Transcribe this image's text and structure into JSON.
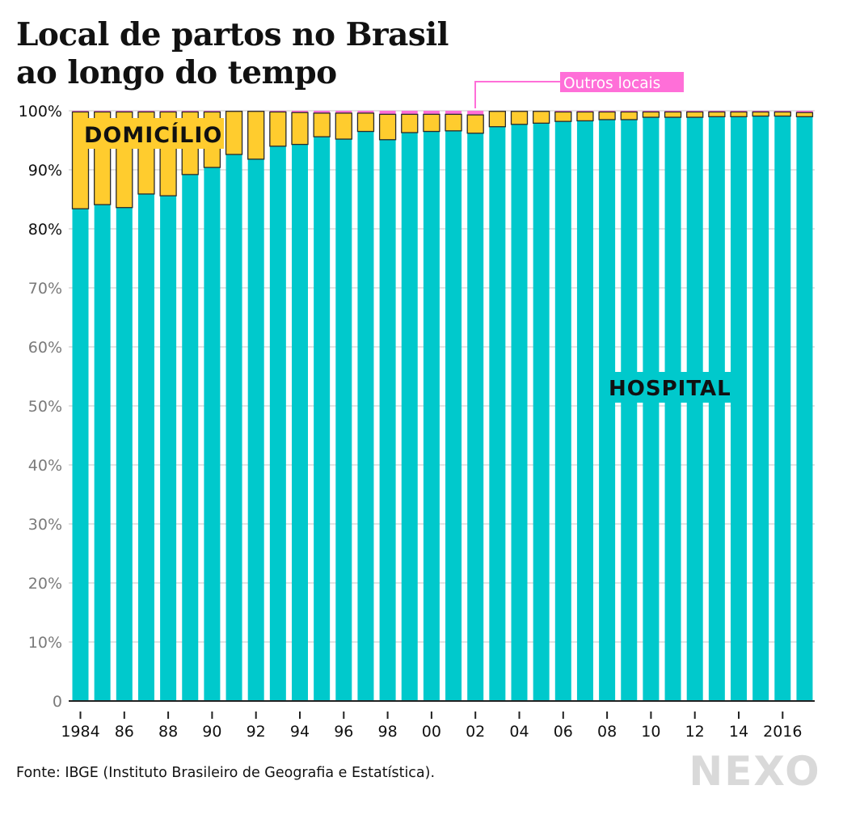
{
  "title_lines": [
    "Local de partos no Brasil",
    "ao longo do tempo"
  ],
  "source": "Fonte: IBGE (Instituto Brasileiro de Geografia e Estatística).",
  "logo_text": "NEXO",
  "colors": {
    "hospital": "#00c9cc",
    "domicilio": "#ffcc2e",
    "outros": "#ff6fd8",
    "outline": "#2a2a2a",
    "grid": "#d9d9d9",
    "logo": "#d9d9d9"
  },
  "chart_data": {
    "type": "bar",
    "stacked": true,
    "title": "Local de partos no Brasil ao longo do tempo",
    "xlabel": "",
    "ylabel": "",
    "ylim": [
      0,
      100
    ],
    "grid": true,
    "yticks": [
      0,
      10,
      20,
      30,
      40,
      50,
      60,
      70,
      80,
      90,
      100
    ],
    "ytick_labels": [
      "0",
      "10%",
      "20%",
      "30%",
      "40%",
      "50%",
      "60%",
      "70%",
      "80%",
      "90%",
      "100%"
    ],
    "ytick_emphasized": [
      80,
      90,
      100
    ],
    "categories": [
      1984,
      1985,
      1986,
      1987,
      1988,
      1989,
      1990,
      1991,
      1992,
      1993,
      1994,
      1995,
      1996,
      1997,
      1998,
      1999,
      2000,
      2001,
      2002,
      2003,
      2004,
      2005,
      2006,
      2007,
      2008,
      2009,
      2010,
      2011,
      2012,
      2013,
      2014,
      2015,
      2016,
      2017
    ],
    "xtick_labels": [
      {
        "year": 1984,
        "label": "1984"
      },
      {
        "year": 1986,
        "label": "86"
      },
      {
        "year": 1988,
        "label": "88"
      },
      {
        "year": 1990,
        "label": "90"
      },
      {
        "year": 1992,
        "label": "92"
      },
      {
        "year": 1994,
        "label": "94"
      },
      {
        "year": 1996,
        "label": "96"
      },
      {
        "year": 1998,
        "label": "98"
      },
      {
        "year": 2000,
        "label": "00"
      },
      {
        "year": 2002,
        "label": "02"
      },
      {
        "year": 2004,
        "label": "04"
      },
      {
        "year": 2006,
        "label": "06"
      },
      {
        "year": 2008,
        "label": "08"
      },
      {
        "year": 2010,
        "label": "10"
      },
      {
        "year": 2012,
        "label": "12"
      },
      {
        "year": 2014,
        "label": "14"
      },
      {
        "year": 2016,
        "label": "2016"
      }
    ],
    "series": [
      {
        "name": "Hospital",
        "label": "HOSPITAL",
        "values": [
          83.4,
          84.1,
          83.6,
          85.9,
          85.6,
          89.2,
          90.4,
          92.6,
          91.8,
          94.0,
          94.3,
          95.6,
          95.2,
          96.5,
          95.1,
          96.3,
          96.5,
          96.6,
          96.2,
          97.3,
          97.7,
          97.9,
          98.2,
          98.3,
          98.5,
          98.5,
          98.9,
          98.9,
          98.9,
          99.0,
          99.0,
          99.1,
          99.1,
          99.0
        ]
      },
      {
        "name": "Domicílio",
        "label": "DOMICÍLIO",
        "values": [
          16.4,
          15.7,
          16.2,
          13.9,
          14.2,
          10.6,
          9.4,
          7.3,
          8.1,
          5.8,
          5.4,
          4.0,
          4.4,
          3.1,
          4.3,
          3.1,
          2.9,
          2.8,
          3.1,
          2.6,
          2.2,
          2.0,
          1.6,
          1.5,
          1.3,
          1.3,
          0.9,
          0.9,
          0.9,
          0.8,
          0.8,
          0.7,
          0.7,
          0.7
        ]
      },
      {
        "name": "Outros locais",
        "label": "Outros locais",
        "values": [
          0.2,
          0.2,
          0.2,
          0.2,
          0.2,
          0.2,
          0.2,
          0.1,
          0.1,
          0.2,
          0.3,
          0.4,
          0.4,
          0.4,
          0.6,
          0.6,
          0.6,
          0.6,
          0.7,
          0.1,
          0.1,
          0.1,
          0.2,
          0.2,
          0.2,
          0.2,
          0.2,
          0.2,
          0.2,
          0.2,
          0.2,
          0.2,
          0.2,
          0.3
        ]
      }
    ],
    "annotations": [
      {
        "text": "DOMICÍLIO",
        "series": "Domicílio"
      },
      {
        "text": "HOSPITAL",
        "series": "Hospital"
      },
      {
        "text": "Outros locais",
        "series": "Outros locais",
        "points_to_year": 2002
      }
    ]
  }
}
